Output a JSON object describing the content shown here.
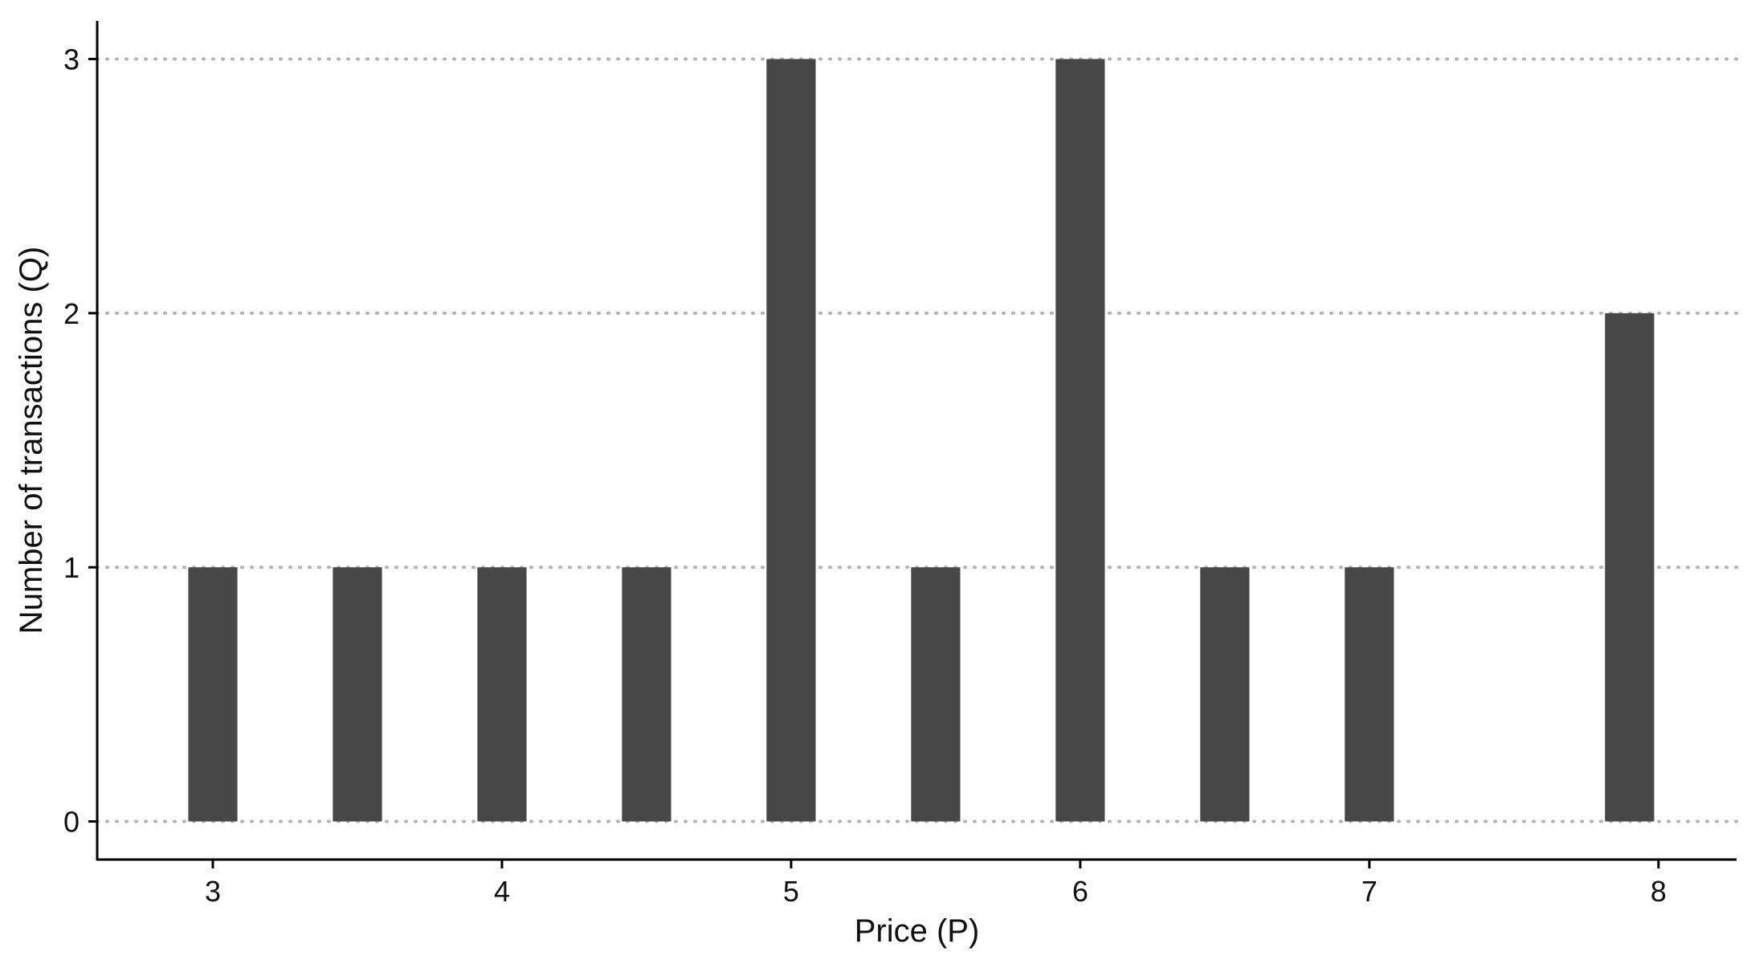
{
  "chart_data": {
    "type": "bar",
    "title": "",
    "xlabel": "Price (P)",
    "ylabel": "Number of transactions (Q)",
    "x_ticks": [
      3,
      4,
      5,
      6,
      7,
      8
    ],
    "y_ticks": [
      0,
      1,
      2,
      3
    ],
    "xlim": [
      2.6,
      8.27
    ],
    "ylim": [
      -0.15,
      3.15
    ],
    "bar_width": 0.17,
    "grid": "horizontal-dotted",
    "bar_color": "#474747",
    "grid_color": "#b3b3b3",
    "axis_color": "#000000",
    "x": [
      3,
      3.5,
      4,
      4.5,
      5,
      5.5,
      6,
      6.5,
      7,
      7.9
    ],
    "values": [
      1,
      1,
      1,
      1,
      3,
      1,
      3,
      1,
      1,
      2
    ]
  }
}
